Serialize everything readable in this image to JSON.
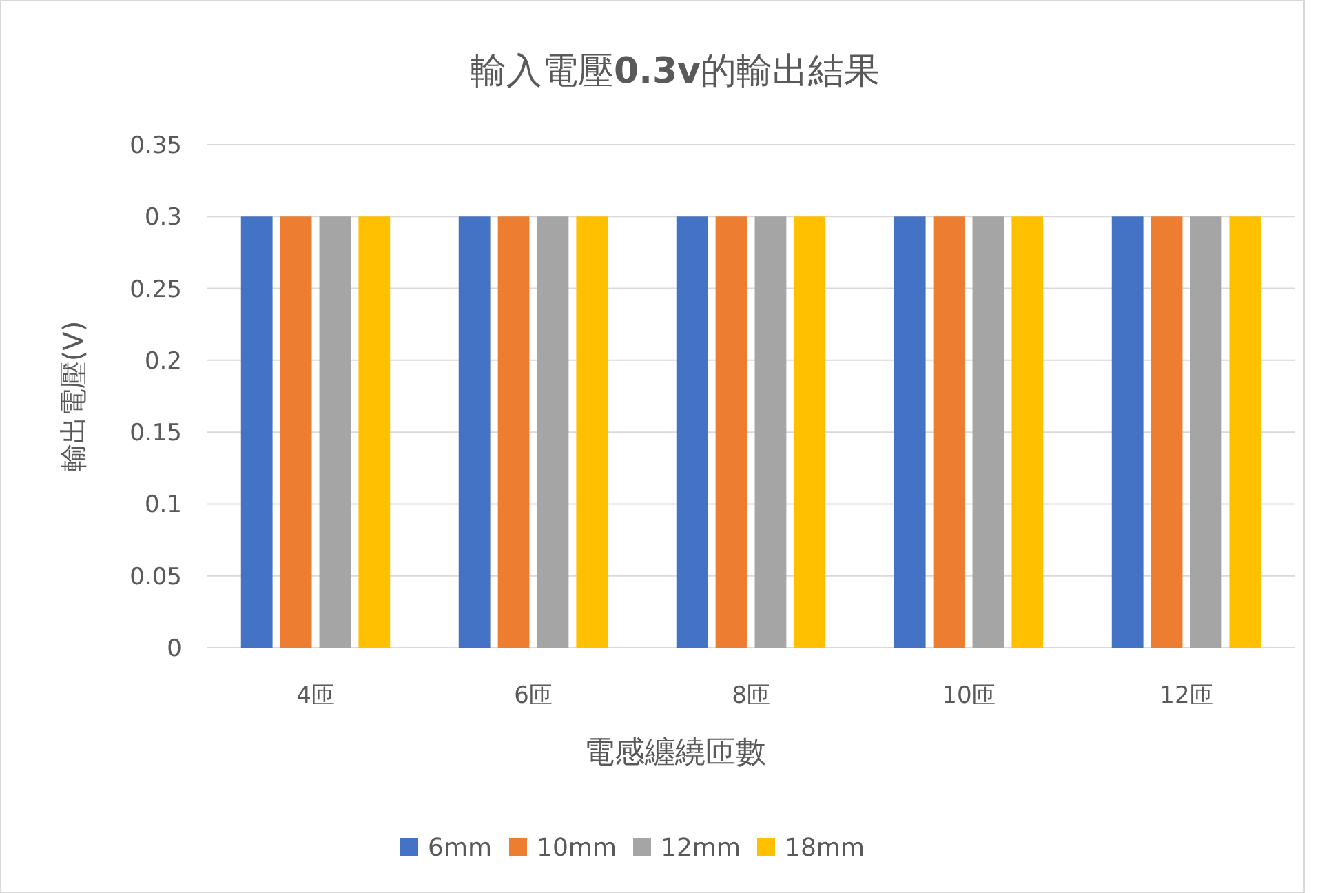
{
  "chart_data": {
    "type": "bar",
    "title": "輸入電壓**0.3v**的輸出結果",
    "xlabel": "電感纏繞匝數",
    "ylabel": "輸出電壓(V)",
    "categories": [
      "4匝",
      "6匝",
      "8匝",
      "10匝",
      "12匝"
    ],
    "series": [
      {
        "name": "6mm",
        "color": "#4472c4",
        "values": [
          0.3,
          0.3,
          0.3,
          0.3,
          0.3
        ]
      },
      {
        "name": "10mm",
        "color": "#ed7d31",
        "values": [
          0.3,
          0.3,
          0.3,
          0.3,
          0.3
        ]
      },
      {
        "name": "12mm",
        "color": "#a5a5a5",
        "values": [
          0.3,
          0.3,
          0.3,
          0.3,
          0.3
        ]
      },
      {
        "name": "18mm",
        "color": "#ffc000",
        "values": [
          0.3,
          0.3,
          0.3,
          0.3,
          0.3
        ]
      }
    ],
    "ylim": [
      0,
      0.35
    ],
    "yticks": [
      0,
      0.05,
      0.1,
      0.15,
      0.2,
      0.25,
      0.3,
      0.35
    ],
    "grid": "y",
    "legend": "bottom"
  }
}
